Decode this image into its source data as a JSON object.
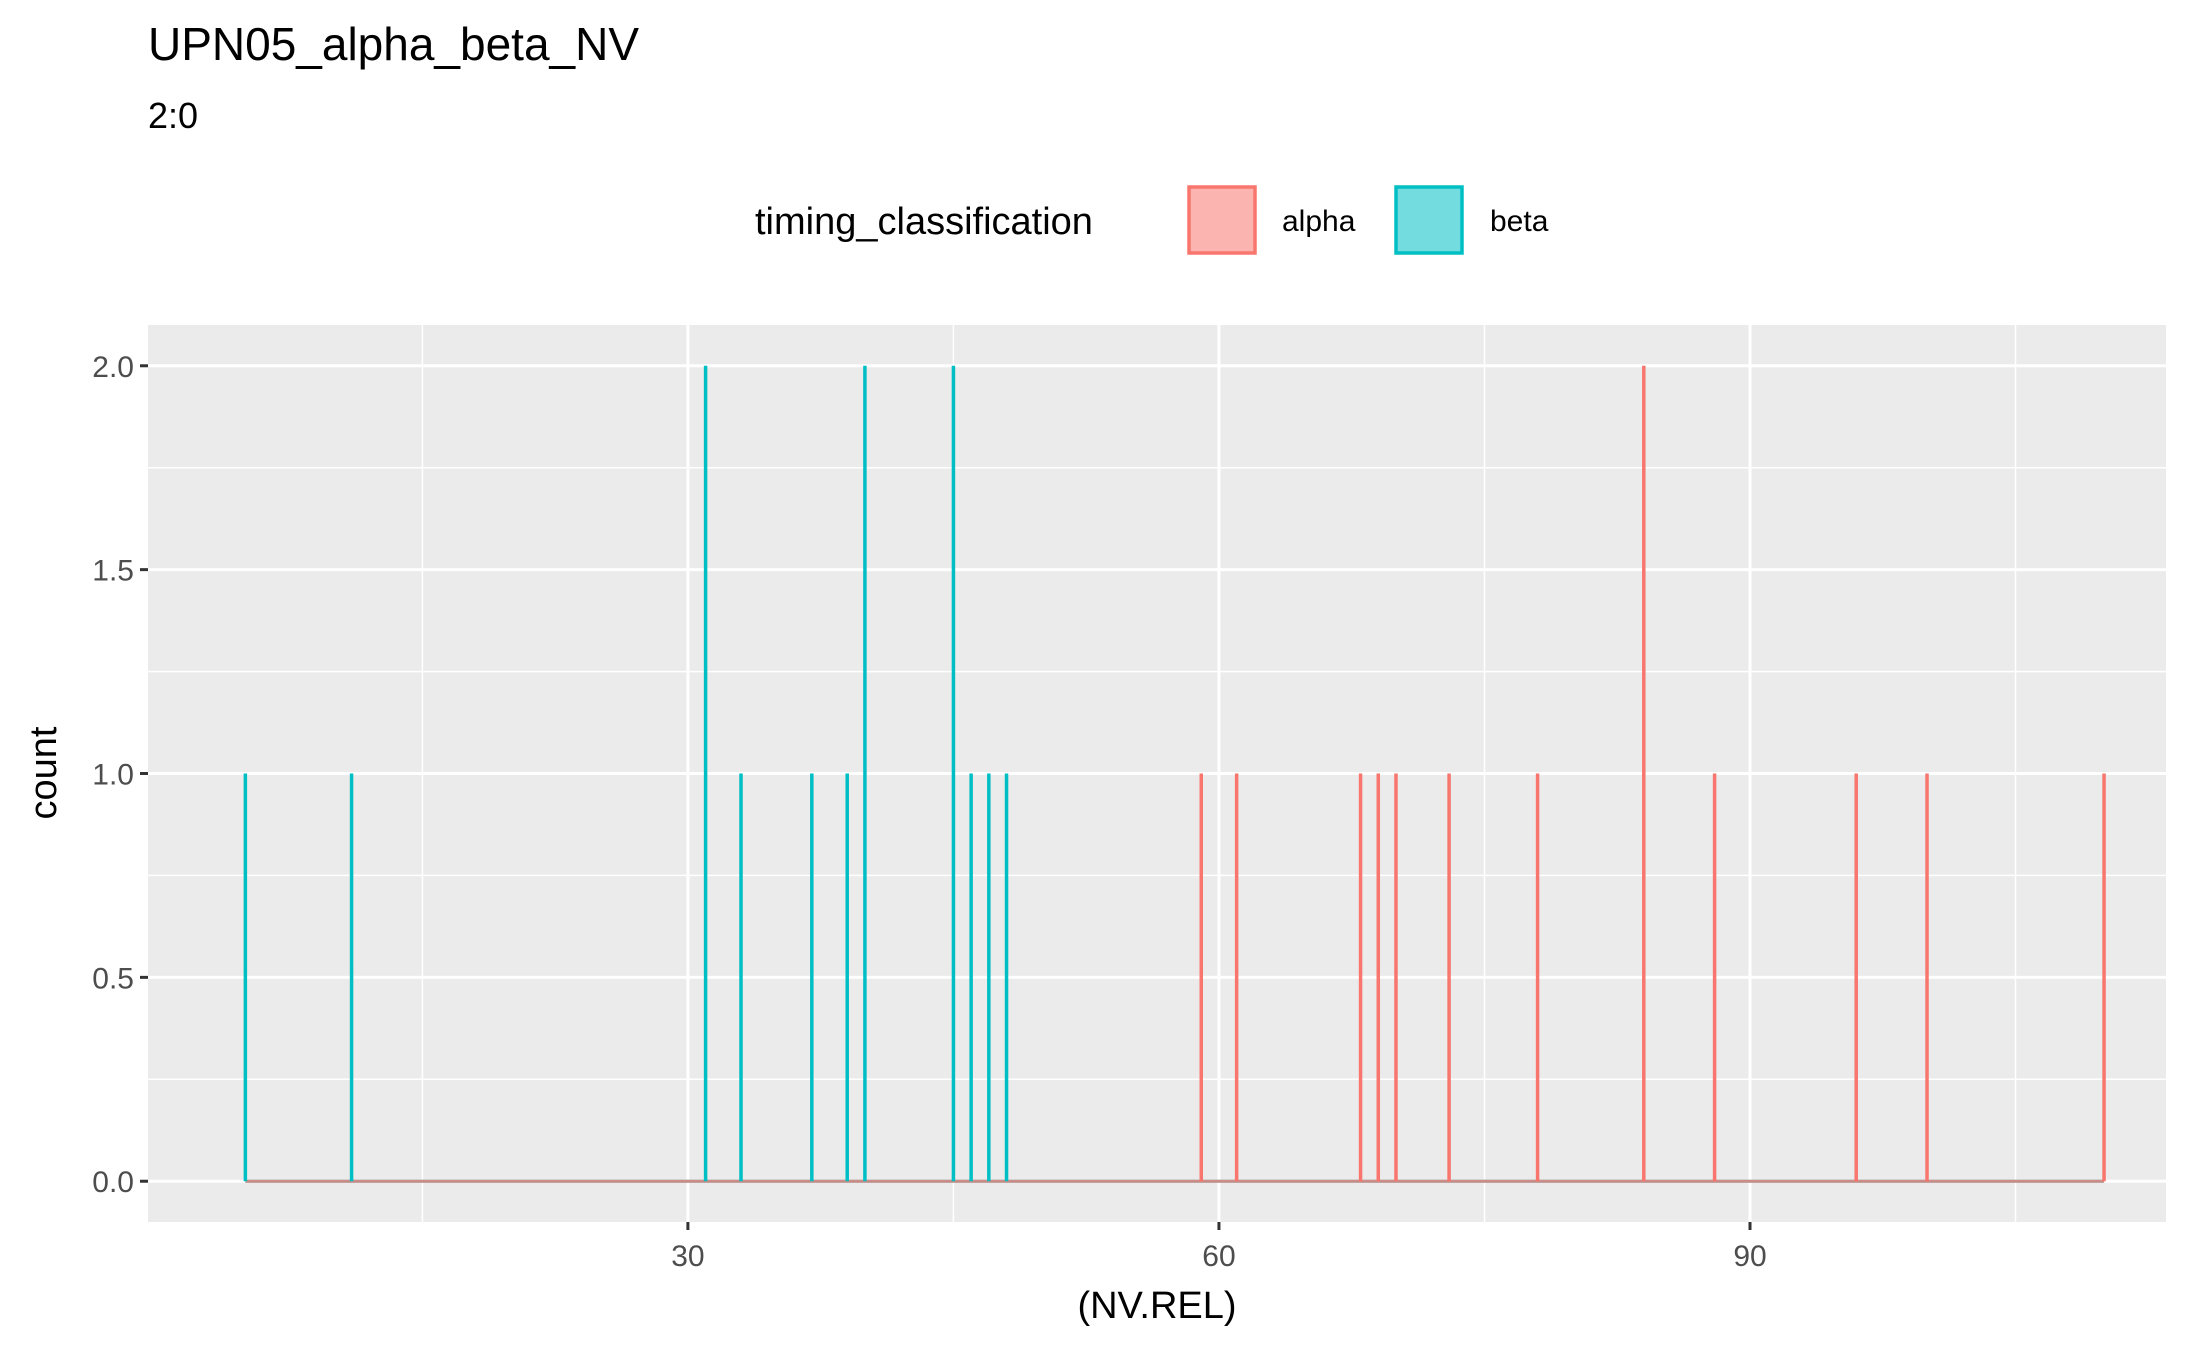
{
  "chart_data": {
    "type": "histogram-step",
    "title": "UPN05_alpha_beta_NV",
    "subtitle": "2:0",
    "xlabel": "(NV.REL)",
    "ylabel": "count",
    "xlim": [
      -0.5,
      113.5
    ],
    "ylim": [
      -0.1,
      2.1
    ],
    "x_ticks": [
      30,
      60,
      90
    ],
    "y_ticks": [
      0.0,
      0.5,
      1.0,
      1.5,
      2.0
    ],
    "y_tick_labels": [
      "0.0",
      "0.5",
      "1.0",
      "1.5",
      "2.0"
    ],
    "x_range": [
      5,
      110
    ],
    "grid": true,
    "legend": {
      "title": "timing_classification",
      "position": "top",
      "entries": [
        "alpha",
        "beta"
      ]
    },
    "colors": {
      "alpha": "#F8766D",
      "beta": "#00BFC4",
      "panel": "#EBEBEB",
      "grid": "#FFFFFF"
    },
    "series": [
      {
        "name": "beta",
        "points": [
          {
            "x": 5,
            "count": 1
          },
          {
            "x": 11,
            "count": 1
          },
          {
            "x": 31,
            "count": 2
          },
          {
            "x": 33,
            "count": 1
          },
          {
            "x": 37,
            "count": 1
          },
          {
            "x": 39,
            "count": 1
          },
          {
            "x": 40,
            "count": 2
          },
          {
            "x": 45,
            "count": 2
          },
          {
            "x": 46,
            "count": 1
          },
          {
            "x": 47,
            "count": 1
          },
          {
            "x": 48,
            "count": 1
          }
        ]
      },
      {
        "name": "alpha",
        "points": [
          {
            "x": 59,
            "count": 1
          },
          {
            "x": 61,
            "count": 1
          },
          {
            "x": 68,
            "count": 1
          },
          {
            "x": 69,
            "count": 1
          },
          {
            "x": 70,
            "count": 1
          },
          {
            "x": 73,
            "count": 1
          },
          {
            "x": 78,
            "count": 1
          },
          {
            "x": 84,
            "count": 2
          },
          {
            "x": 88,
            "count": 1
          },
          {
            "x": 96,
            "count": 1
          },
          {
            "x": 100,
            "count": 1
          },
          {
            "x": 110,
            "count": 1
          }
        ]
      }
    ]
  }
}
